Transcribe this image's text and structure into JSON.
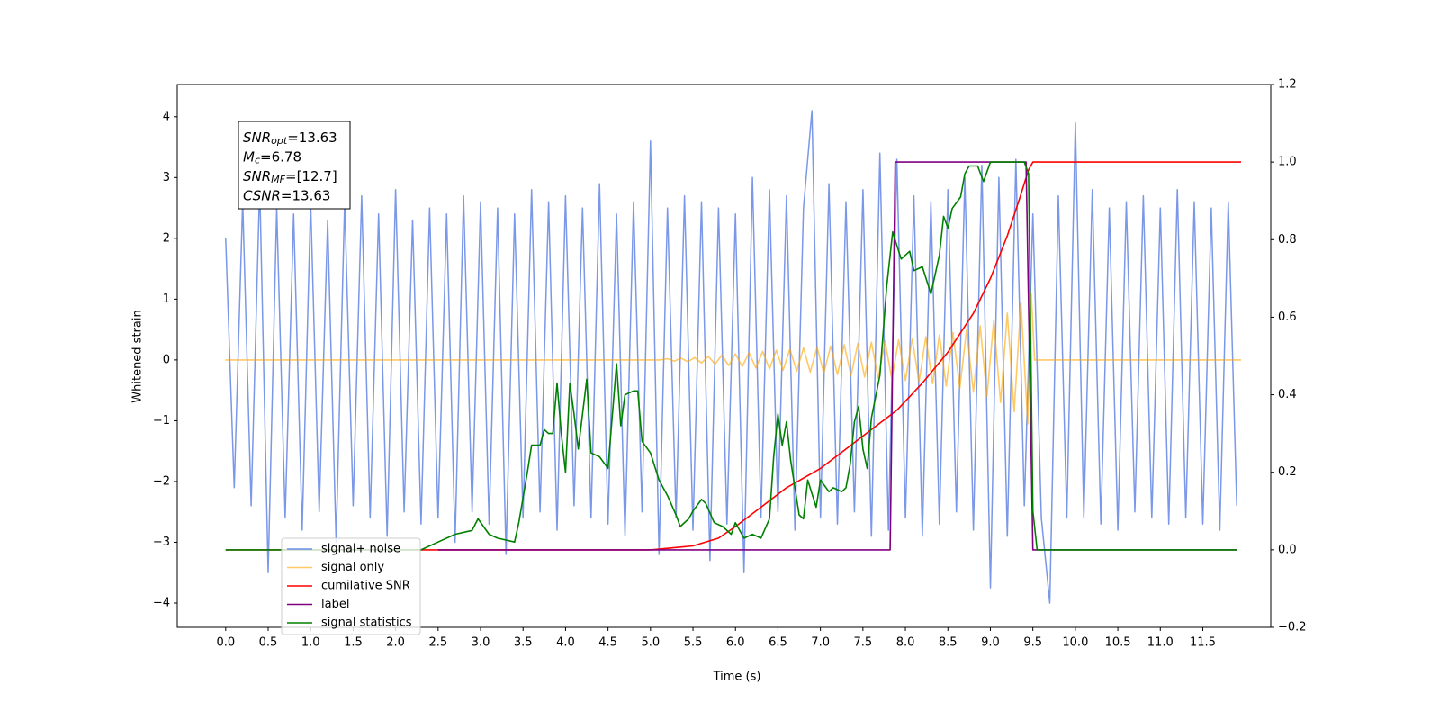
{
  "chart_data": {
    "type": "line",
    "xlabel": "Time (s)",
    "ylabel": "Whitened strain",
    "xlim": [
      -0.57,
      12.3
    ],
    "ylim": [
      -4.4,
      4.53
    ],
    "y2lim": [
      -0.2,
      1.2
    ],
    "xticks": [
      {
        "value": 0,
        "label": "0.0"
      },
      0.5,
      {
        "value": 1,
        "label": "1.0"
      },
      1.5,
      {
        "value": 2,
        "label": "2.0"
      },
      2.5,
      {
        "value": 3,
        "label": "3.0"
      },
      3.5,
      {
        "value": 4,
        "label": "4.0"
      },
      4.5,
      {
        "value": 5,
        "label": "5.0"
      },
      5.5,
      {
        "value": 6,
        "label": "6.0"
      },
      6.5,
      {
        "value": 7,
        "label": "7.0"
      },
      7.5,
      {
        "value": 8,
        "label": "8.0"
      },
      8.5,
      {
        "value": 9,
        "label": "9.0"
      },
      9.5,
      {
        "value": 10,
        "label": "10.0"
      },
      10.5,
      {
        "value": 11,
        "label": "11.0"
      },
      11.5
    ],
    "yticks": [
      {
        "value": -4,
        "label": "−4"
      },
      {
        "value": -3,
        "label": "−3"
      },
      {
        "value": -2,
        "label": "−2"
      },
      {
        "value": -1,
        "label": "−1"
      },
      0,
      1,
      2,
      3,
      4
    ],
    "y2ticks": [
      {
        "value": -0.2,
        "label": "−0.2"
      },
      {
        "value": 0,
        "label": "0.0"
      },
      0.2,
      0.4,
      0.6,
      0.8,
      {
        "value": 1,
        "label": "1.0"
      },
      1.2
    ],
    "grid": false,
    "legend": "lower left",
    "annotation": [
      {
        "symbol": "SNR",
        "subscript": "opt",
        "text": "=13.63"
      },
      {
        "symbol": "M",
        "subscript": "c",
        "text": "=6.78"
      },
      {
        "symbol": "SNR",
        "subscript": "MF",
        "text": "=[12.7]"
      },
      {
        "symbol": "CSNR",
        "text": "=13.63"
      }
    ],
    "series": [
      {
        "name": "signal+ noise",
        "color": "#6b8ce6",
        "axis": "y",
        "x": [
          0.0,
          0.1,
          0.2,
          0.3,
          0.4,
          0.5,
          0.6,
          0.7,
          0.8,
          0.9,
          1.0,
          1.1,
          1.2,
          1.3,
          1.4,
          1.5,
          1.6,
          1.7,
          1.8,
          1.9,
          2.0,
          2.1,
          2.2,
          2.3,
          2.4,
          2.5,
          2.6,
          2.7,
          2.8,
          2.9,
          3.0,
          3.1,
          3.2,
          3.3,
          3.4,
          3.5,
          3.6,
          3.7,
          3.8,
          3.9,
          4.0,
          4.1,
          4.2,
          4.3,
          4.4,
          4.5,
          4.6,
          4.7,
          4.8,
          4.9,
          5.0,
          5.1,
          5.2,
          5.3,
          5.4,
          5.5,
          5.6,
          5.7,
          5.8,
          5.9,
          6.0,
          6.1,
          6.2,
          6.3,
          6.4,
          6.5,
          6.6,
          6.7,
          6.8,
          6.9,
          7.0,
          7.1,
          7.2,
          7.3,
          7.4,
          7.5,
          7.6,
          7.7,
          7.8,
          7.9,
          8.0,
          8.1,
          8.2,
          8.3,
          8.4,
          8.5,
          8.6,
          8.7,
          8.8,
          8.9,
          9.0,
          9.1,
          9.2,
          9.3,
          9.4,
          9.5,
          9.6,
          9.7,
          9.8,
          9.9,
          10.0,
          10.1,
          10.2,
          10.3,
          10.4,
          10.5,
          10.6,
          10.7,
          10.8,
          10.9,
          11.0,
          11.1,
          11.2,
          11.3,
          11.4,
          11.5,
          11.6,
          11.7,
          11.8,
          11.9
        ],
        "values": [
          2.0,
          -2.1,
          2.6,
          -2.4,
          2.9,
          -3.5,
          2.5,
          -2.6,
          2.4,
          -2.8,
          2.6,
          -2.5,
          2.3,
          -3.0,
          2.6,
          -2.4,
          2.7,
          -2.6,
          2.4,
          -2.9,
          2.8,
          -2.5,
          2.3,
          -2.7,
          2.5,
          -2.6,
          2.4,
          -3.0,
          2.7,
          -2.5,
          2.6,
          -2.7,
          2.5,
          -3.2,
          2.4,
          -2.6,
          2.8,
          -2.5,
          2.6,
          -2.8,
          2.7,
          -2.4,
          2.5,
          -2.6,
          2.9,
          -2.7,
          2.4,
          -2.9,
          2.6,
          -2.5,
          3.6,
          -3.2,
          2.5,
          -2.6,
          2.7,
          -2.8,
          2.6,
          -3.3,
          2.5,
          -2.7,
          2.4,
          -3.5,
          3.0,
          -2.6,
          2.8,
          -2.5,
          2.7,
          -2.8,
          2.5,
          4.1,
          -2.6,
          2.9,
          -2.7,
          2.6,
          -2.5,
          2.8,
          -2.9,
          3.4,
          -2.8,
          3.3,
          -2.6,
          2.7,
          -2.9,
          2.6,
          -2.7,
          2.8,
          -2.5,
          3.0,
          -2.8,
          3.2,
          -3.75,
          3.0,
          -2.9,
          3.3,
          -2.4,
          2.4,
          -2.6,
          -4.0,
          2.7,
          -2.6,
          3.9,
          -2.6,
          2.8,
          -2.7,
          2.5,
          -2.8,
          2.6,
          -2.5,
          2.7,
          -2.6,
          2.5,
          -2.7,
          2.8,
          -2.6,
          2.6,
          -2.7,
          2.5,
          -2.8,
          2.6,
          -2.4
        ]
      },
      {
        "name": "signal only",
        "color": "#ffa500",
        "axis": "y",
        "x": [
          0.0,
          5.12,
          5.2,
          5.28,
          5.36,
          5.44,
          5.52,
          5.6,
          5.68,
          5.76,
          5.84,
          5.92,
          6.0,
          6.08,
          6.16,
          6.24,
          6.32,
          6.4,
          6.48,
          6.56,
          6.64,
          6.72,
          6.8,
          6.88,
          6.96,
          7.04,
          7.12,
          7.2,
          7.28,
          7.36,
          7.44,
          7.52,
          7.6,
          7.68,
          7.76,
          7.84,
          7.92,
          8.0,
          8.08,
          8.16,
          8.24,
          8.32,
          8.4,
          8.48,
          8.56,
          8.64,
          8.72,
          8.8,
          8.88,
          8.96,
          9.04,
          9.12,
          9.2,
          9.28,
          9.36,
          9.44,
          9.48,
          9.52,
          11.95
        ],
        "values": [
          0,
          0,
          0.02,
          -0.02,
          0.03,
          -0.03,
          0.04,
          -0.05,
          0.06,
          -0.07,
          0.08,
          -0.09,
          0.1,
          -0.11,
          0.12,
          -0.13,
          0.14,
          -0.15,
          0.16,
          -0.17,
          0.18,
          -0.19,
          0.2,
          -0.2,
          0.21,
          -0.22,
          0.23,
          -0.24,
          0.25,
          -0.26,
          0.27,
          -0.28,
          0.29,
          -0.3,
          0.31,
          -0.32,
          0.33,
          -0.34,
          0.35,
          -0.36,
          0.38,
          -0.39,
          0.41,
          -0.43,
          0.45,
          -0.47,
          0.5,
          -0.53,
          0.56,
          -0.6,
          0.65,
          -0.7,
          0.77,
          -0.85,
          0.95,
          -1.05,
          1.1,
          0,
          0
        ]
      },
      {
        "name": "cumilative SNR",
        "color": "#ff0000",
        "axis": "y2",
        "x": [
          0.0,
          5.0,
          5.5,
          5.8,
          6.0,
          6.3,
          6.6,
          7.0,
          7.3,
          7.6,
          7.9,
          8.2,
          8.5,
          8.8,
          9.0,
          9.2,
          9.35,
          9.45,
          9.5,
          11.95
        ],
        "values": [
          0,
          0,
          0.01,
          0.03,
          0.06,
          0.11,
          0.16,
          0.21,
          0.26,
          0.31,
          0.36,
          0.43,
          0.51,
          0.61,
          0.7,
          0.81,
          0.91,
          0.98,
          1,
          1
        ]
      },
      {
        "name": "label",
        "color": "#800080",
        "axis": "y2",
        "x": [
          2.5,
          7.82,
          7.88,
          9.42,
          9.5,
          11.9
        ],
        "values": [
          0,
          0,
          1,
          1,
          0,
          0
        ]
      },
      {
        "name": "signal statistics",
        "color": "#008000",
        "axis": "y2",
        "x": [
          0.0,
          2.3,
          2.5,
          2.7,
          2.9,
          2.97,
          3.1,
          3.2,
          3.4,
          3.45,
          3.55,
          3.6,
          3.7,
          3.75,
          3.8,
          3.85,
          3.9,
          3.95,
          4.0,
          4.05,
          4.1,
          4.15,
          4.25,
          4.3,
          4.4,
          4.5,
          4.6,
          4.65,
          4.7,
          4.8,
          4.85,
          4.9,
          5.0,
          5.1,
          5.2,
          5.3,
          5.35,
          5.45,
          5.5,
          5.6,
          5.65,
          5.75,
          5.85,
          5.95,
          6.0,
          6.1,
          6.2,
          6.3,
          6.4,
          6.45,
          6.5,
          6.55,
          6.6,
          6.65,
          6.75,
          6.8,
          6.85,
          6.95,
          7.0,
          7.1,
          7.15,
          7.25,
          7.3,
          7.35,
          7.4,
          7.45,
          7.5,
          7.55,
          7.6,
          7.7,
          7.78,
          7.85,
          7.95,
          8.05,
          8.1,
          8.2,
          8.3,
          8.4,
          8.45,
          8.5,
          8.55,
          8.65,
          8.7,
          8.75,
          8.85,
          8.92,
          9.0,
          9.4,
          9.45,
          9.5,
          9.55,
          11.9
        ],
        "values": [
          0,
          0,
          0.02,
          0.04,
          0.05,
          0.08,
          0.04,
          0.03,
          0.02,
          0.07,
          0.2,
          0.27,
          0.27,
          0.31,
          0.3,
          0.3,
          0.43,
          0.3,
          0.2,
          0.43,
          0.35,
          0.26,
          0.44,
          0.25,
          0.24,
          0.21,
          0.48,
          0.32,
          0.4,
          0.41,
          0.41,
          0.28,
          0.25,
          0.18,
          0.14,
          0.09,
          0.06,
          0.08,
          0.1,
          0.13,
          0.12,
          0.07,
          0.06,
          0.04,
          0.07,
          0.03,
          0.04,
          0.03,
          0.08,
          0.24,
          0.35,
          0.27,
          0.33,
          0.23,
          0.09,
          0.08,
          0.18,
          0.11,
          0.18,
          0.15,
          0.16,
          0.15,
          0.16,
          0.22,
          0.33,
          0.37,
          0.26,
          0.21,
          0.34,
          0.45,
          0.68,
          0.82,
          0.75,
          0.77,
          0.72,
          0.73,
          0.66,
          0.76,
          0.86,
          0.83,
          0.88,
          0.91,
          0.97,
          0.99,
          0.99,
          0.95,
          1,
          1,
          0.97,
          0.1,
          0,
          0
        ]
      }
    ]
  }
}
